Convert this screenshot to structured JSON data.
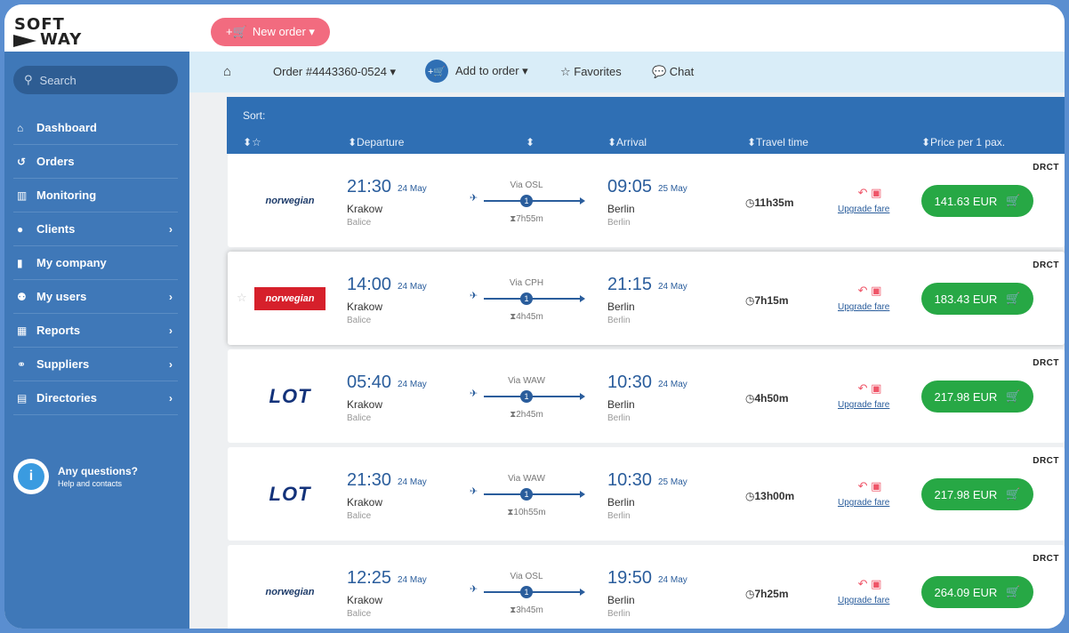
{
  "brand": {
    "line1": "SOFT",
    "line2": "WAY"
  },
  "header": {
    "new_order_label": "New order ▾"
  },
  "sidebar": {
    "search_placeholder": "Search",
    "items": [
      {
        "label": "Dashboard",
        "icon": "home-icon",
        "chevron": false
      },
      {
        "label": "Orders",
        "icon": "history-icon",
        "chevron": false
      },
      {
        "label": "Monitoring",
        "icon": "bar-chart-icon",
        "chevron": false
      },
      {
        "label": "Clients",
        "icon": "user-circle-icon",
        "chevron": true
      },
      {
        "label": "My company",
        "icon": "building-icon",
        "chevron": false
      },
      {
        "label": "My users",
        "icon": "users-icon",
        "chevron": true
      },
      {
        "label": "Reports",
        "icon": "calculator-icon",
        "chevron": true
      },
      {
        "label": "Suppliers",
        "icon": "handshake-icon",
        "chevron": true
      },
      {
        "label": "Directories",
        "icon": "book-icon",
        "chevron": true
      }
    ],
    "help": {
      "title": "Any questions?",
      "subtitle": "Help and contacts"
    }
  },
  "subnav": {
    "order_label": "Order #4443360-0524 ▾",
    "add_to_order_label": "Add to order ▾",
    "favorites_label": "☆ Favorites",
    "chat_label": "💬 Chat"
  },
  "sort": {
    "label": "Sort:",
    "headers": {
      "fav": "⬍☆",
      "departure": "⬍Departure",
      "route": "⬍",
      "arrival": "⬍Arrival",
      "travel_time": "⬍Travel time",
      "price": "⬍Price per 1 pax."
    }
  },
  "flights": [
    {
      "airline": "norwegian",
      "airline_style": "plain",
      "dep_time": "21:30",
      "dep_date": "24 May",
      "dep_city": "Krakow",
      "dep_airport": "Balice",
      "via": "Via OSL",
      "stops": "1",
      "layover": "⧗7h55m",
      "arr_time": "09:05",
      "arr_date": "25 May",
      "arr_city": "Berlin",
      "arr_airport": "Berlin",
      "travel_time": "◷11h35m",
      "upgrade": "Upgrade fare",
      "price": "141.63 EUR",
      "supplier": "DRCT",
      "highlight": false
    },
    {
      "airline": "norwegian",
      "airline_style": "red",
      "dep_time": "14:00",
      "dep_date": "24 May",
      "dep_city": "Krakow",
      "dep_airport": "Balice",
      "via": "Via CPH",
      "stops": "1",
      "layover": "⧗4h45m",
      "arr_time": "21:15",
      "arr_date": "24 May",
      "arr_city": "Berlin",
      "arr_airport": "Berlin",
      "travel_time": "◷7h15m",
      "upgrade": "Upgrade fare",
      "price": "183.43 EUR",
      "supplier": "DRCT",
      "highlight": true
    },
    {
      "airline": "LOT",
      "airline_style": "lot",
      "dep_time": "05:40",
      "dep_date": "24 May",
      "dep_city": "Krakow",
      "dep_airport": "Balice",
      "via": "Via WAW",
      "stops": "1",
      "layover": "⧗2h45m",
      "arr_time": "10:30",
      "arr_date": "24 May",
      "arr_city": "Berlin",
      "arr_airport": "Berlin",
      "travel_time": "◷4h50m",
      "upgrade": "Upgrade fare",
      "price": "217.98 EUR",
      "supplier": "DRCT",
      "highlight": false
    },
    {
      "airline": "LOT",
      "airline_style": "lot",
      "dep_time": "21:30",
      "dep_date": "24 May",
      "dep_city": "Krakow",
      "dep_airport": "Balice",
      "via": "Via WAW",
      "stops": "1",
      "layover": "⧗10h55m",
      "arr_time": "10:30",
      "arr_date": "25 May",
      "arr_city": "Berlin",
      "arr_airport": "Berlin",
      "travel_time": "◷13h00m",
      "upgrade": "Upgrade fare",
      "price": "217.98 EUR",
      "supplier": "DRCT",
      "highlight": false
    },
    {
      "airline": "norwegian",
      "airline_style": "plain",
      "dep_time": "12:25",
      "dep_date": "24 May",
      "dep_city": "Krakow",
      "dep_airport": "Balice",
      "via": "Via OSL",
      "stops": "1",
      "layover": "⧗3h45m",
      "arr_time": "19:50",
      "arr_date": "24 May",
      "arr_city": "Berlin",
      "arr_airport": "Berlin",
      "travel_time": "◷7h25m",
      "upgrade": "Upgrade fare",
      "price": "264.09 EUR",
      "supplier": "DRCT",
      "highlight": false
    }
  ],
  "colors": {
    "sidebar": "#3f78b8",
    "accent": "#2f6fb4",
    "price_button": "#27a845",
    "new_order": "#f26b7f"
  }
}
